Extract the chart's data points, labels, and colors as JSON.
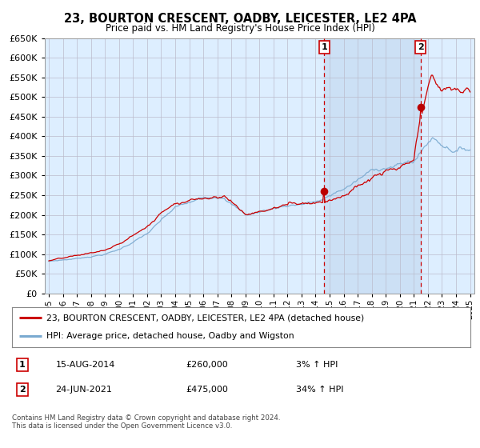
{
  "title": "23, BOURTON CRESCENT, OADBY, LEICESTER, LE2 4PA",
  "subtitle": "Price paid vs. HM Land Registry's House Price Index (HPI)",
  "legend_line1": "23, BOURTON CRESCENT, OADBY, LEICESTER, LE2 4PA (detached house)",
  "legend_line2": "HPI: Average price, detached house, Oadby and Wigston",
  "annotation1_date": "15-AUG-2014",
  "annotation1_price": "£260,000",
  "annotation1_hpi": "3% ↑ HPI",
  "annotation2_date": "24-JUN-2021",
  "annotation2_price": "£475,000",
  "annotation2_hpi": "34% ↑ HPI",
  "purchase1_year": 2014.62,
  "purchase1_value": 260000,
  "purchase2_year": 2021.48,
  "purchase2_value": 475000,
  "ylim": [
    0,
    650000
  ],
  "xlim": [
    1994.7,
    2025.3
  ],
  "background_color": "#ffffff",
  "plot_bg_color": "#ddeeff",
  "shade_color": "#cce0f5",
  "grid_color": "#bbbbcc",
  "hpi_color": "#7aaad0",
  "price_color": "#cc0000",
  "dot_color": "#bb0000",
  "vline_color": "#cc0000",
  "footer": "Contains HM Land Registry data © Crown copyright and database right 2024.\nThis data is licensed under the Open Government Licence v3.0.",
  "yticks": [
    0,
    50000,
    100000,
    150000,
    200000,
    250000,
    300000,
    350000,
    400000,
    450000,
    500000,
    550000,
    600000,
    650000
  ],
  "xtick_years": [
    1995,
    1996,
    1997,
    1998,
    1999,
    2000,
    2001,
    2002,
    2003,
    2004,
    2005,
    2006,
    2007,
    2008,
    2009,
    2010,
    2011,
    2012,
    2013,
    2014,
    2015,
    2016,
    2017,
    2018,
    2019,
    2020,
    2021,
    2022,
    2023,
    2024,
    2025
  ]
}
